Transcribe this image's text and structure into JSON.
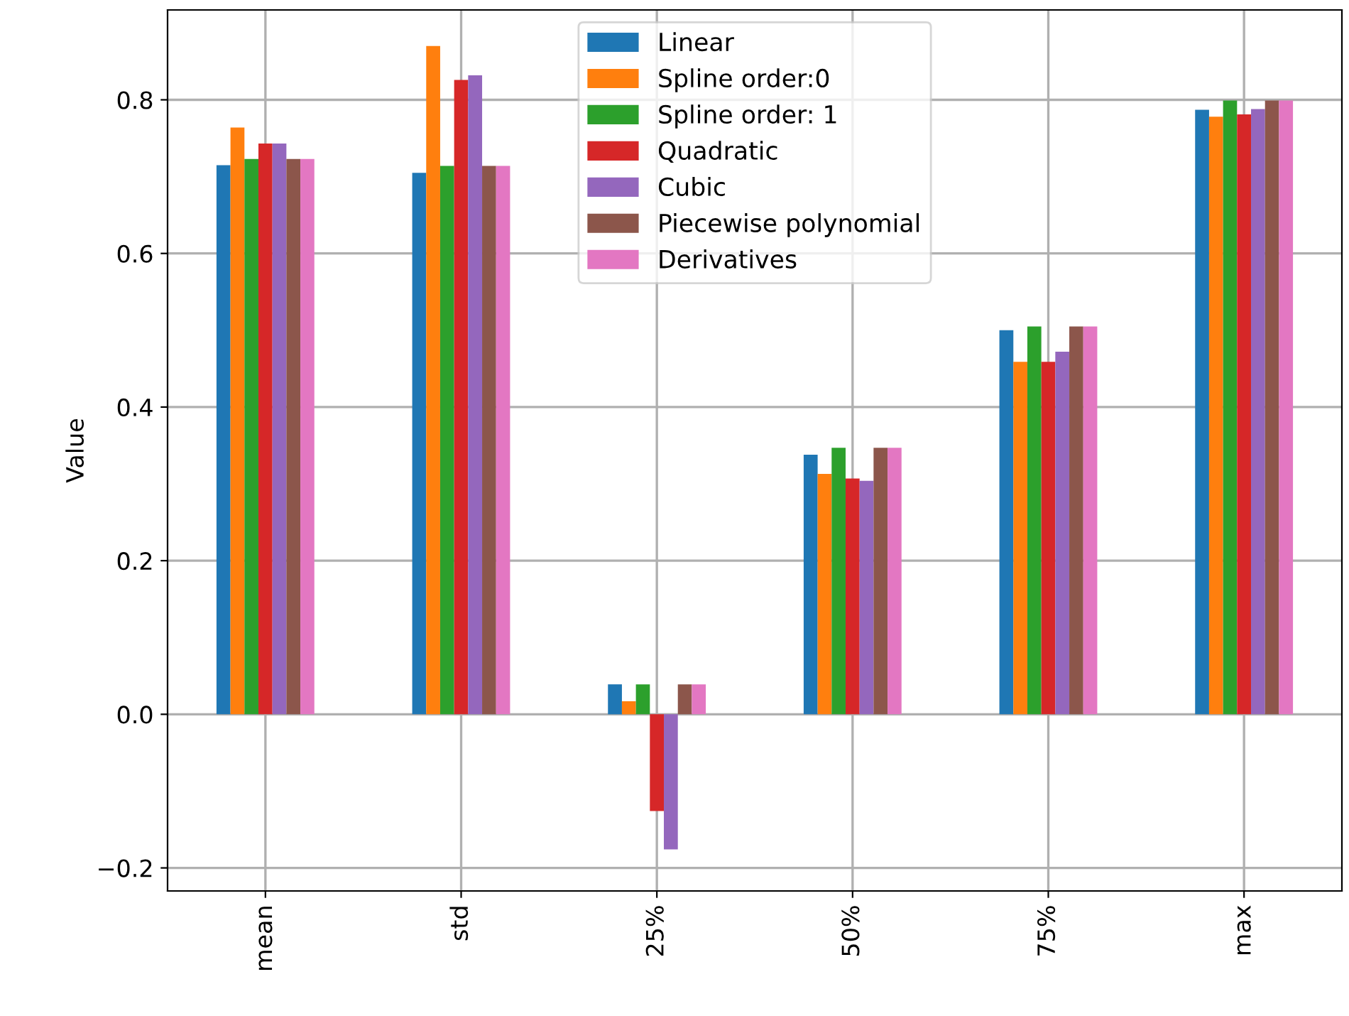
{
  "chart_data": {
    "type": "bar",
    "ylabel": "Value",
    "categories": [
      "mean",
      "std",
      "25%",
      "50%",
      "75%",
      "max"
    ],
    "series": [
      {
        "name": "Linear",
        "color": "#1f77b4",
        "values": [
          0.715,
          0.705,
          0.039,
          0.338,
          0.5,
          0.787
        ]
      },
      {
        "name": "Spline order:0",
        "color": "#ff7f0e",
        "values": [
          0.764,
          0.87,
          0.017,
          0.313,
          0.459,
          0.778
        ]
      },
      {
        "name": "Spline order: 1",
        "color": "#2ca02c",
        "values": [
          0.723,
          0.714,
          0.039,
          0.347,
          0.505,
          0.799
        ]
      },
      {
        "name": "Quadratic",
        "color": "#d62728",
        "values": [
          0.743,
          0.826,
          -0.126,
          0.307,
          0.459,
          0.781
        ]
      },
      {
        "name": "Cubic",
        "color": "#9467bd",
        "values": [
          0.743,
          0.832,
          -0.176,
          0.304,
          0.472,
          0.788
        ]
      },
      {
        "name": "Piecewise polynomial",
        "color": "#8c564b",
        "values": [
          0.723,
          0.714,
          0.039,
          0.347,
          0.505,
          0.799
        ]
      },
      {
        "name": "Derivatives",
        "color": "#e377c2",
        "values": [
          0.723,
          0.714,
          0.039,
          0.347,
          0.505,
          0.799
        ]
      }
    ],
    "ylim": [
      -0.23,
      0.917
    ],
    "yticks": [
      {
        "value": -0.2,
        "label": "−0.2"
      },
      {
        "value": 0.0,
        "label": "0.0"
      },
      {
        "value": 0.2,
        "label": "0.2"
      },
      {
        "value": 0.4,
        "label": "0.4"
      },
      {
        "value": 0.6,
        "label": "0.6"
      },
      {
        "value": 0.8,
        "label": "0.8"
      }
    ],
    "grid": true,
    "legend": "top"
  }
}
